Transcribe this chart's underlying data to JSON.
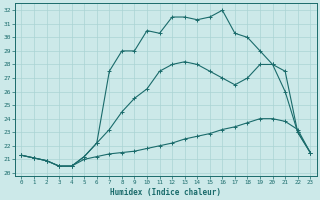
{
  "xlabel": "Humidex (Indice chaleur)",
  "xlim": [
    -0.5,
    23.5
  ],
  "ylim": [
    19.8,
    32.5
  ],
  "yticks": [
    20,
    21,
    22,
    23,
    24,
    25,
    26,
    27,
    28,
    29,
    30,
    31,
    32
  ],
  "xticks": [
    0,
    1,
    2,
    3,
    4,
    5,
    6,
    7,
    8,
    9,
    10,
    11,
    12,
    13,
    14,
    15,
    16,
    17,
    18,
    19,
    20,
    21,
    22,
    23
  ],
  "background_color": "#cce9e9",
  "line_color": "#1a6b6b",
  "grid_color": "#aad4d4",
  "line1_x": [
    0,
    1,
    2,
    3,
    4,
    5,
    6,
    7,
    8,
    9,
    10,
    11,
    12,
    13,
    14,
    15,
    16,
    17,
    18,
    19,
    20,
    21,
    22,
    23
  ],
  "line1_y": [
    21.3,
    21.1,
    20.9,
    20.5,
    20.5,
    21.0,
    21.2,
    21.4,
    21.5,
    21.6,
    21.8,
    22.0,
    22.2,
    22.5,
    22.7,
    22.9,
    23.2,
    23.4,
    23.7,
    24.0,
    24.0,
    23.8,
    23.2,
    21.5
  ],
  "line2_x": [
    0,
    1,
    2,
    3,
    4,
    5,
    6,
    7,
    8,
    9,
    10,
    11,
    12,
    13,
    14,
    15,
    16,
    17,
    18,
    19,
    20,
    21,
    22,
    23
  ],
  "line2_y": [
    21.3,
    21.1,
    20.9,
    20.5,
    20.5,
    21.2,
    22.2,
    23.2,
    24.5,
    25.5,
    26.2,
    27.5,
    28.0,
    28.2,
    28.0,
    27.5,
    27.0,
    26.5,
    27.0,
    28.0,
    28.0,
    26.0,
    23.0,
    21.5
  ],
  "line3_x": [
    0,
    1,
    2,
    3,
    4,
    5,
    6,
    7,
    8,
    9,
    10,
    11,
    12,
    13,
    14,
    15,
    16,
    17,
    18,
    19,
    20,
    21,
    22,
    23
  ],
  "line3_y": [
    21.3,
    21.1,
    20.9,
    20.5,
    20.5,
    21.2,
    22.2,
    27.5,
    29.0,
    29.0,
    30.5,
    30.3,
    31.5,
    31.5,
    31.3,
    31.5,
    32.0,
    30.3,
    30.0,
    29.0,
    28.0,
    27.5,
    23.0,
    21.5
  ],
  "figsize": [
    3.2,
    2.0
  ],
  "dpi": 100
}
